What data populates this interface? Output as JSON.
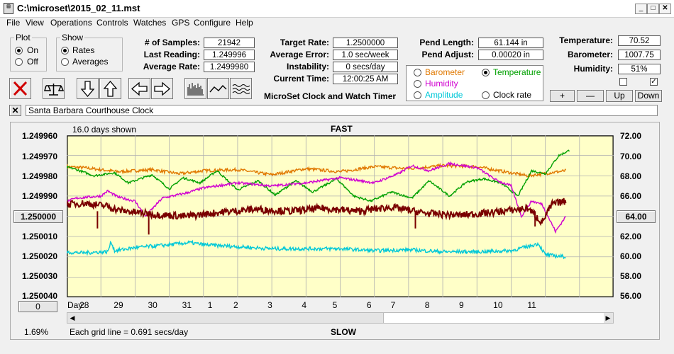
{
  "window": {
    "title": "C:\\microset\\2015_02_11.mst"
  },
  "menu": [
    "File",
    "View",
    "Operations",
    "Controls",
    "Watches",
    "GPS",
    "Configure",
    "Help"
  ],
  "plot_group": {
    "title": "Plot",
    "options": [
      "On",
      "Off"
    ],
    "selected": "On"
  },
  "show_group": {
    "title": "Show",
    "options": [
      "Rates",
      "Averages"
    ],
    "selected": "Rates"
  },
  "stats": {
    "samples_label": "# of Samples:",
    "samples": "21942",
    "last_reading_label": "Last Reading:",
    "last_reading": "1.249996",
    "average_rate_label": "Average Rate:",
    "average_rate": "1.2499980"
  },
  "rates": {
    "target_rate_label": "Target Rate:",
    "target_rate": "1.2500000",
    "average_error_label": "Average Error:",
    "average_error": "1.0 sec/week",
    "instability_label": "Instability:",
    "instability": "0 secs/day",
    "current_time_label": "Current Time:",
    "current_time": "12:00:25 AM"
  },
  "app_caption": "MicroSet Clock and Watch Timer",
  "pend": {
    "length_label": "Pend Length:",
    "length": "61.144 in",
    "adjust_label": "Pend Adjust:",
    "adjust": "0.00020 in"
  },
  "env": {
    "temperature_label": "Temperature:",
    "temperature": "70.52",
    "barometer_label": "Barometer:",
    "barometer": "1007.75",
    "humidity_label": "Humidity:",
    "humidity": "51%"
  },
  "series_options": [
    {
      "label": "Barometer",
      "color": "#e07800",
      "selected": false
    },
    {
      "label": "Temperature",
      "color": "#00a000",
      "selected": true
    },
    {
      "label": "Humidity",
      "color": "#d000d0",
      "selected": false
    },
    {
      "label": "Amplitude",
      "color": "#00c8d8",
      "selected": false
    },
    {
      "label": "Clock rate",
      "color": "#000000",
      "selected": false
    }
  ],
  "scale_buttons": {
    "plus": "+",
    "minus": "—",
    "up": "Up",
    "down": "Down"
  },
  "watch_name": "Santa Barbara Courthouse Clock",
  "chart_panel": {
    "days_shown": "16.0 days shown",
    "top_label": "FAST",
    "bottom_label": "SLOW",
    "grid_note": "Each grid line = 0.691 secs/day",
    "percent": "1.69%",
    "center_left": "1.250000",
    "center_right": "64.00",
    "offset_button": "0",
    "day_label": "Day:"
  },
  "chart_data": {
    "type": "line",
    "left_axis_ticks": [
      "1.249960",
      "1.249970",
      "1.249980",
      "1.249990",
      "1.250000",
      "1.250010",
      "1.250020",
      "1.250030",
      "1.250040"
    ],
    "right_axis_ticks": [
      "72.00",
      "70.00",
      "68.00",
      "66.00",
      "64.00",
      "62.00",
      "60.00",
      "58.00",
      "56.00"
    ],
    "x_ticks": [
      "28",
      "29",
      "30",
      "31",
      "1",
      "2",
      "3",
      "4",
      "5",
      "6",
      "7",
      "8",
      "9",
      "10",
      "11"
    ],
    "x_tick_pos": [
      0.5,
      1.5,
      2.5,
      3.5,
      4.25,
      5.0,
      6.0,
      7.0,
      7.9,
      8.9,
      9.6,
      10.6,
      11.6,
      12.6,
      13.6
    ],
    "xlim": [
      0,
      16
    ],
    "ylim_left": [
      1.24996,
      1.25004
    ],
    "ylim_right": [
      56,
      72
    ],
    "grid": true,
    "series": [
      {
        "name": "Barometer",
        "color": "#e07800",
        "axis": "right",
        "noise": 0.15,
        "x": [
          -0.6,
          0.5,
          1.5,
          2.5,
          3.3,
          4.0,
          5.0,
          6.0,
          7.0,
          8.0,
          9.0,
          10.0,
          11.0,
          12.0,
          12.8,
          13.5,
          14.6
        ],
        "y": [
          69.0,
          68.8,
          68.4,
          68.6,
          68.2,
          68.5,
          68.6,
          68.1,
          68.7,
          68.4,
          68.9,
          68.7,
          69.0,
          68.9,
          68.4,
          68.0,
          68.5
        ]
      },
      {
        "name": "Temperature",
        "color": "#00a000",
        "axis": "right",
        "noise": 0.1,
        "x": [
          -0.6,
          0.2,
          0.8,
          1.4,
          1.8,
          2.5,
          3.0,
          3.4,
          3.9,
          4.4,
          5.0,
          5.6,
          6.1,
          6.7,
          7.2,
          7.9,
          8.4,
          8.9,
          9.5,
          10.1,
          10.6,
          11.2,
          11.7,
          12.2,
          12.7,
          13.2,
          13.6,
          14.0,
          14.4,
          14.7
        ],
        "y": [
          69.3,
          68.7,
          68.0,
          68.3,
          67.3,
          68.1,
          66.7,
          67.8,
          67.3,
          68.5,
          66.6,
          67.5,
          66.1,
          67.5,
          66.4,
          67.7,
          66.0,
          65.5,
          66.4,
          65.8,
          67.5,
          66.0,
          67.4,
          67.7,
          67.3,
          66.0,
          68.5,
          68.2,
          70.0,
          70.5
        ]
      },
      {
        "name": "Humidity",
        "color": "#d000d0",
        "axis": "right",
        "noise": 0.12,
        "x": [
          -0.6,
          0.3,
          1.0,
          1.2,
          1.5,
          2.0,
          2.3,
          2.8,
          3.5,
          4.0,
          5.0,
          6.0,
          7.0,
          8.0,
          9.0,
          9.7,
          10.1,
          10.6,
          11.2,
          12.0,
          12.6,
          13.0,
          13.3,
          13.6,
          13.9,
          14.3,
          14.6
        ],
        "y": [
          64.8,
          65.8,
          66.0,
          66.5,
          65.9,
          65.5,
          64.0,
          65.8,
          66.3,
          66.8,
          67.3,
          67.0,
          67.3,
          67.8,
          67.3,
          68.2,
          69.0,
          68.5,
          69.2,
          68.8,
          67.5,
          67.0,
          64.0,
          65.5,
          65.2,
          62.5,
          64.0
        ]
      },
      {
        "name": "Amplitude",
        "color": "#00c8d8",
        "axis": "right",
        "noise": 0.18,
        "x": [
          -0.6,
          0.5,
          1.2,
          1.3,
          1.4,
          2.0,
          3.0,
          3.6,
          4.0,
          5.0,
          6.0,
          7.0,
          8.0,
          9.0,
          10.0,
          11.0,
          12.0,
          13.0,
          13.8,
          14.0,
          14.6
        ],
        "y": [
          60.5,
          60.4,
          60.5,
          61.5,
          60.6,
          60.9,
          61.2,
          61.4,
          61.2,
          61.0,
          60.8,
          60.8,
          60.8,
          60.6,
          60.7,
          60.5,
          60.5,
          60.6,
          61.3,
          60.2,
          60.0
        ]
      },
      {
        "name": "Clock rate",
        "color": "#7a0000",
        "axis": "right",
        "noise": 0.35,
        "width": 2,
        "x": [
          -0.6,
          0.5,
          1.2,
          1.5,
          2.5,
          3.5,
          4.5,
          5.5,
          6.5,
          7.5,
          8.5,
          9.5,
          10.5,
          11.5,
          12.5,
          13.5,
          13.9,
          14.2,
          14.6
        ],
        "y": [
          65.0,
          65.3,
          65.0,
          64.6,
          64.2,
          64.0,
          64.4,
          64.7,
          64.5,
          64.8,
          64.5,
          64.9,
          64.3,
          64.1,
          64.4,
          64.8,
          63.4,
          65.2,
          65.5
        ]
      }
    ]
  }
}
